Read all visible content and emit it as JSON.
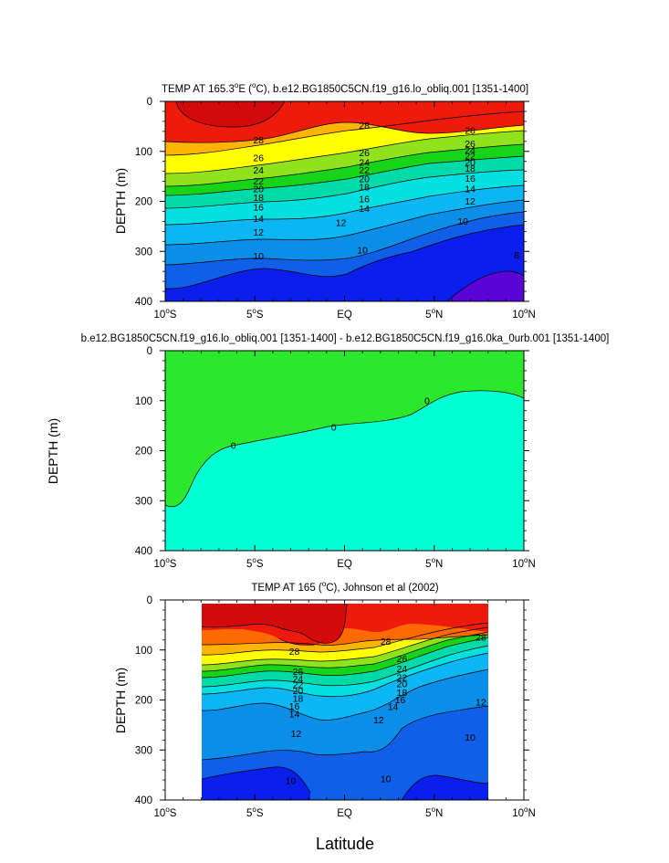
{
  "chart_data": [
    {
      "type": "contour",
      "title": "TEMP AT 165.3ºE (ºC), b.e12.BG1850C5CN.f19_g16.lo_obliq.001 [1351-1400]",
      "title_main": "TEMP AT 165.3",
      "title_deg1": "o",
      "title_mid": "E (",
      "title_deg2": "o",
      "title_rest": "C), b.e12.BG1850C5CN.f19_g16.lo_obliq.001 [1351-1400]",
      "ylabel": "DEPTH (m)",
      "xlabel": "",
      "xlim": [
        -10,
        10
      ],
      "ylim": [
        0,
        400
      ],
      "x_ticks": [
        -10,
        -5,
        0,
        5,
        10
      ],
      "x_tick_labels": [
        "10ºS",
        "5ºS",
        "EQ",
        "5ºN",
        "10ºN"
      ],
      "y_ticks": [
        0,
        100,
        200,
        300,
        400
      ],
      "y_tick_labels": [
        "0",
        "100",
        "200",
        "300",
        "400"
      ],
      "contour_levels": [
        8,
        10,
        12,
        14,
        16,
        18,
        20,
        22,
        24,
        26,
        28
      ],
      "labeled_contours": [
        {
          "text": "28",
          "x": -4.8,
          "depth": 78
        },
        {
          "text": "28",
          "x": 1.1,
          "depth": 48
        },
        {
          "text": "28",
          "x": 7.0,
          "depth": 58
        },
        {
          "text": "26",
          "x": -4.8,
          "depth": 113
        },
        {
          "text": "24",
          "x": -4.8,
          "depth": 138
        },
        {
          "text": "22",
          "x": -4.8,
          "depth": 160
        },
        {
          "text": "20",
          "x": -4.8,
          "depth": 175
        },
        {
          "text": "18",
          "x": -4.8,
          "depth": 193
        },
        {
          "text": "16",
          "x": -4.8,
          "depth": 212
        },
        {
          "text": "14",
          "x": -4.8,
          "depth": 235
        },
        {
          "text": "12",
          "x": -4.8,
          "depth": 262
        },
        {
          "text": "10",
          "x": -4.8,
          "depth": 310
        },
        {
          "text": "26",
          "x": 1.1,
          "depth": 103
        },
        {
          "text": "24",
          "x": 1.1,
          "depth": 122
        },
        {
          "text": "22",
          "x": 1.1,
          "depth": 138
        },
        {
          "text": "20",
          "x": 1.1,
          "depth": 155
        },
        {
          "text": "18",
          "x": 1.1,
          "depth": 172
        },
        {
          "text": "16",
          "x": 1.1,
          "depth": 195
        },
        {
          "text": "14",
          "x": 1.1,
          "depth": 215
        },
        {
          "text": "12",
          "x": -0.2,
          "depth": 243
        },
        {
          "text": "10",
          "x": 1.0,
          "depth": 298
        },
        {
          "text": "26",
          "x": 7.0,
          "depth": 85
        },
        {
          "text": "24",
          "x": 7.0,
          "depth": 98
        },
        {
          "text": "22",
          "x": 7.0,
          "depth": 110
        },
        {
          "text": "20",
          "x": 7.0,
          "depth": 122
        },
        {
          "text": "18",
          "x": 7.0,
          "depth": 134
        },
        {
          "text": "16",
          "x": 7.0,
          "depth": 154
        },
        {
          "text": "14",
          "x": 7.0,
          "depth": 175
        },
        {
          "text": "12",
          "x": 7.0,
          "depth": 200
        },
        {
          "text": "10",
          "x": 6.6,
          "depth": 240
        },
        {
          "text": "8",
          "x": 9.6,
          "depth": 308
        }
      ]
    },
    {
      "type": "contour",
      "title": "b.e12.BG1850C5CN.f19_g16.lo_obliq.001 [1351-1400] - b.e12.BG1850C5CN.f19_g16.0ka_0urb.001 [1351-1400]",
      "ylabel": "DEPTH (m)",
      "xlabel": "",
      "xlim": [
        -10,
        10
      ],
      "ylim": [
        0,
        400
      ],
      "x_ticks": [
        -10,
        -5,
        0,
        5,
        10
      ],
      "x_tick_labels": [
        "10ºS",
        "5ºS",
        "EQ",
        "5ºN",
        "10ºN"
      ],
      "y_ticks": [
        0,
        100,
        200,
        300,
        400
      ],
      "y_tick_labels": [
        "0",
        "100",
        "200",
        "300",
        "400"
      ],
      "contour_levels": [
        0
      ],
      "labeled_contours": [
        {
          "text": "0",
          "x": -6.2,
          "depth": 190
        },
        {
          "text": "0",
          "x": -0.6,
          "depth": 153
        },
        {
          "text": "0",
          "x": 4.6,
          "depth": 100
        }
      ]
    },
    {
      "type": "contour",
      "title": "TEMP AT 165 (ºC), Johnson et al (2002)",
      "title_main": "TEMP AT 165 (",
      "title_deg": "o",
      "title_rest": "C), Johnson et al (2002)",
      "ylabel": "DEPTH (m)",
      "xlabel": "Latitude",
      "xlim": [
        -10,
        10
      ],
      "ylim": [
        0,
        400
      ],
      "data_xlim": [
        -8,
        8
      ],
      "x_ticks": [
        -10,
        -5,
        0,
        5,
        10
      ],
      "x_tick_labels": [
        "10ºS",
        "5ºS",
        "EQ",
        "5ºN",
        "10ºN"
      ],
      "y_ticks": [
        0,
        100,
        200,
        300,
        400
      ],
      "y_tick_labels": [
        "0",
        "100",
        "200",
        "300",
        "400"
      ],
      "contour_levels": [
        10,
        12,
        14,
        16,
        18,
        20,
        22,
        24,
        26,
        28
      ],
      "labeled_contours": [
        {
          "text": "28",
          "x": -2.8,
          "depth": 103
        },
        {
          "text": "28",
          "x": 2.3,
          "depth": 83
        },
        {
          "text": "28",
          "x": 7.6,
          "depth": 75
        },
        {
          "text": "26",
          "x": -2.6,
          "depth": 143
        },
        {
          "text": "24",
          "x": -2.6,
          "depth": 158
        },
        {
          "text": "22",
          "x": -2.6,
          "depth": 170
        },
        {
          "text": "20",
          "x": -2.6,
          "depth": 182
        },
        {
          "text": "18",
          "x": -2.6,
          "depth": 197
        },
        {
          "text": "16",
          "x": -2.8,
          "depth": 213
        },
        {
          "text": "14",
          "x": -2.8,
          "depth": 228
        },
        {
          "text": "12",
          "x": -2.7,
          "depth": 268
        },
        {
          "text": "10",
          "x": -3.0,
          "depth": 362
        },
        {
          "text": "26",
          "x": 3.2,
          "depth": 118
        },
        {
          "text": "24",
          "x": 3.2,
          "depth": 138
        },
        {
          "text": "22",
          "x": 3.2,
          "depth": 155
        },
        {
          "text": "20",
          "x": 3.2,
          "depth": 168
        },
        {
          "text": "18",
          "x": 3.2,
          "depth": 185
        },
        {
          "text": "16",
          "x": 3.1,
          "depth": 200
        },
        {
          "text": "14",
          "x": 2.7,
          "depth": 214
        },
        {
          "text": "12",
          "x": 1.9,
          "depth": 240
        },
        {
          "text": "12",
          "x": 7.6,
          "depth": 205
        },
        {
          "text": "10",
          "x": 7.0,
          "depth": 275
        },
        {
          "text": "10",
          "x": 2.3,
          "depth": 358
        }
      ]
    }
  ],
  "figure_xlabel": "Latitude",
  "colors": {
    "t_lt8": "#5a05d6",
    "t_8_10": "#0a1eee",
    "t_10_12": "#0f5fe8",
    "t_12_14": "#0a8ee8",
    "t_14_16": "#0cb6f4",
    "t_16_18": "#04e0e0",
    "t_18_20": "#00d9a8",
    "t_20_22": "#18d418",
    "t_22_24": "#8fe21c",
    "t_24_26": "#ffff00",
    "t_26_28": "#ffb400",
    "t_28_29": "#ff6a00",
    "t_29_30": "#ee1a0c",
    "t_gt30": "#d20a0a",
    "diff_neg": "#2ce82c",
    "diff_pos": "#00ffd2"
  }
}
